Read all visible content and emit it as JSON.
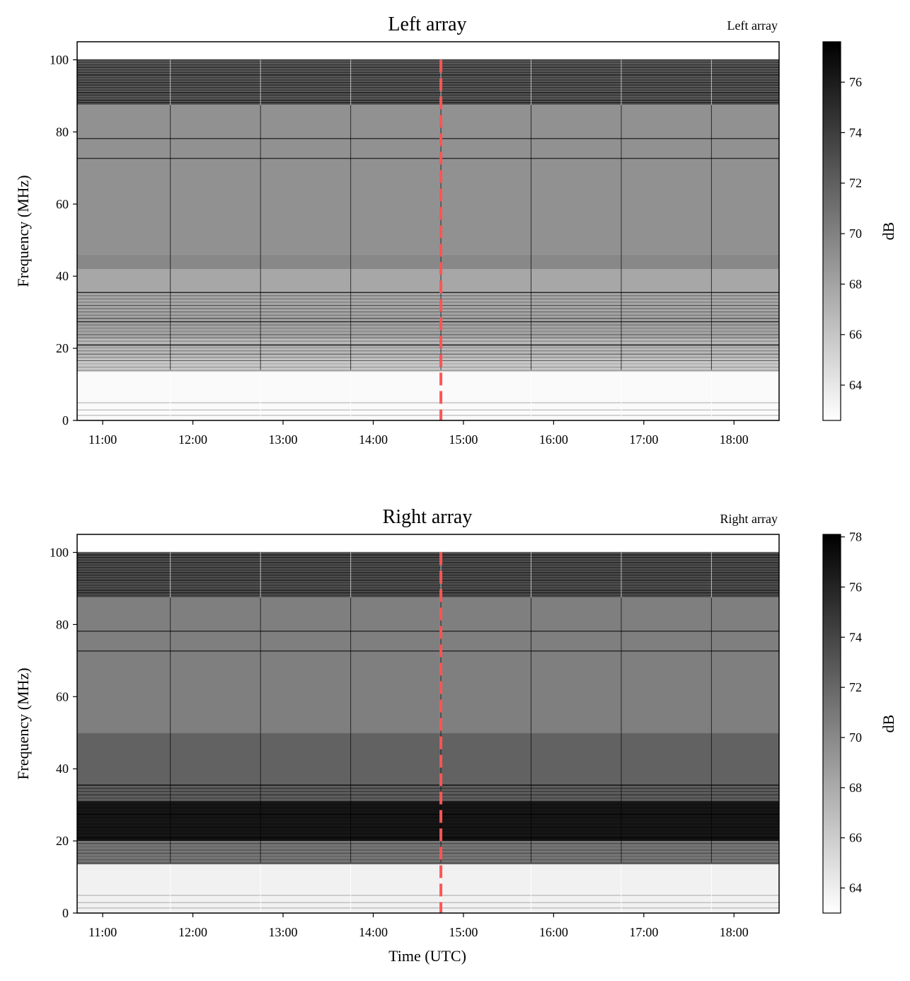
{
  "colors": {
    "cmap_low": "#ffffff",
    "cmap_high": "#000000",
    "marker": "#ff5555",
    "axis": "#000000"
  },
  "chart_data": [
    {
      "type": "heatmap",
      "title": "Left array",
      "corner_label": "Left array",
      "xlabel": "",
      "ylabel": "Frequency (MHz)",
      "x_range": [
        "10:43",
        "18:30"
      ],
      "x_ticks": [
        "11:00",
        "12:00",
        "13:00",
        "14:00",
        "15:00",
        "16:00",
        "17:00",
        "18:00"
      ],
      "ylim": [
        0,
        105
      ],
      "y_ticks": [
        "0",
        "20",
        "40",
        "60",
        "80",
        "100"
      ],
      "colorbar": {
        "label": "dB",
        "range": [
          62.6,
          77.6
        ],
        "ticks": [
          "64",
          "66",
          "68",
          "70",
          "72",
          "74",
          "76"
        ]
      },
      "marker_time": "14:45",
      "grid": false,
      "bands": [
        {
          "fmin": 0,
          "fmax": 13.5,
          "level": 62.9
        },
        {
          "fmin": 13.5,
          "fmax": 17,
          "level": 65.8
        },
        {
          "fmin": 17,
          "fmax": 23,
          "level": 66.8
        },
        {
          "fmin": 23,
          "fmax": 30,
          "level": 68.0
        },
        {
          "fmin": 30,
          "fmax": 42,
          "level": 67.8
        },
        {
          "fmin": 42,
          "fmax": 46,
          "level": 69.6
        },
        {
          "fmin": 46,
          "fmax": 87.5,
          "level": 69.1
        },
        {
          "fmin": 87.5,
          "fmax": 100,
          "level": 72.3
        }
      ]
    },
    {
      "type": "heatmap",
      "title": "Right array",
      "corner_label": "Right array",
      "xlabel": "Time (UTC)",
      "ylabel": "Frequency (MHz)",
      "x_range": [
        "10:43",
        "18:30"
      ],
      "x_ticks": [
        "11:00",
        "12:00",
        "13:00",
        "14:00",
        "15:00",
        "16:00",
        "17:00",
        "18:00"
      ],
      "ylim": [
        0,
        105
      ],
      "y_ticks": [
        "0",
        "20",
        "40",
        "60",
        "80",
        "100"
      ],
      "colorbar": {
        "label": "dB",
        "range": [
          63.0,
          78.1
        ],
        "ticks": [
          "64",
          "66",
          "68",
          "70",
          "72",
          "74",
          "76",
          "78"
        ]
      },
      "marker_time": "14:45",
      "grid": false,
      "bands": [
        {
          "fmin": 0,
          "fmax": 13.5,
          "level": 63.8
        },
        {
          "fmin": 13.5,
          "fmax": 20,
          "level": 71.2
        },
        {
          "fmin": 20,
          "fmax": 31,
          "level": 76.8
        },
        {
          "fmin": 31,
          "fmax": 36,
          "level": 72.6
        },
        {
          "fmin": 36,
          "fmax": 50,
          "level": 72.3
        },
        {
          "fmin": 50,
          "fmax": 87.5,
          "level": 70.6
        },
        {
          "fmin": 87.5,
          "fmax": 100,
          "level": 73.3
        }
      ]
    }
  ]
}
